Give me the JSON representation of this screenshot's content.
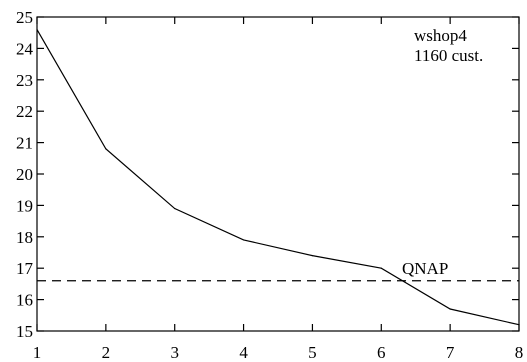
{
  "chart_data": {
    "type": "line",
    "title": "",
    "xlabel": "",
    "ylabel": "",
    "xlim": [
      1,
      8
    ],
    "ylim": [
      15,
      25
    ],
    "grid": false,
    "x": [
      1,
      2,
      3,
      4,
      5,
      6,
      7,
      8
    ],
    "series": [
      {
        "values": [
          24.6,
          20.8,
          18.9,
          17.9,
          17.4,
          17.0,
          15.7,
          15.2
        ]
      }
    ],
    "x_ticks": [
      1,
      2,
      3,
      4,
      5,
      6,
      7,
      8
    ],
    "y_ticks": [
      15,
      16,
      17,
      18,
      19,
      20,
      21,
      22,
      23,
      24,
      25
    ],
    "reference_line": {
      "label": "QNAP",
      "value": 16.6,
      "style": "dashed"
    },
    "annotations": [
      "wshop4",
      "1160 cust."
    ]
  }
}
